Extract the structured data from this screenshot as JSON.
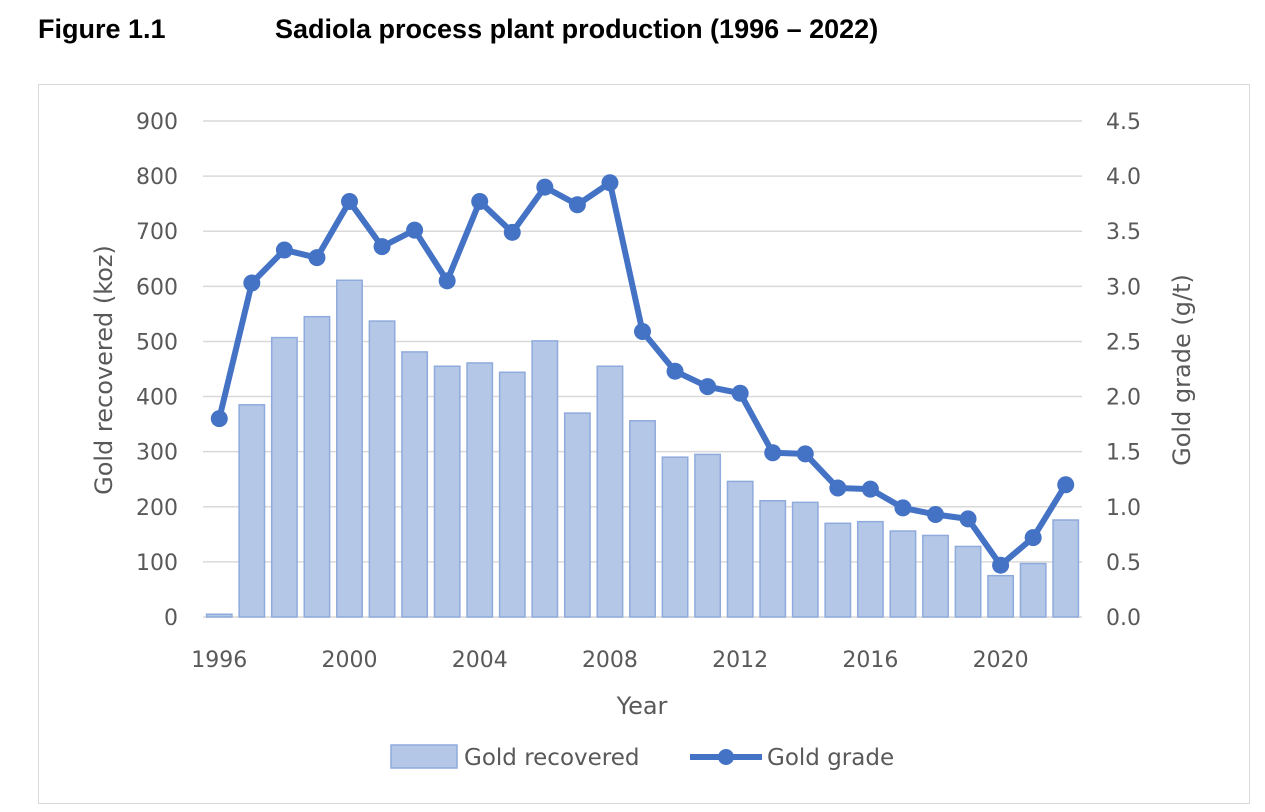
{
  "figure": {
    "label": "Figure 1.1",
    "title": "Sadiola process plant production (1996 – 2022)"
  },
  "colors": {
    "bar_fill": "#b4c7e7",
    "bar_stroke": "#8faadc",
    "line": "#4472c4",
    "grid": "#d9d9d9",
    "text": "#595959"
  },
  "chart_data": {
    "type": "bar",
    "x": [
      1996,
      1997,
      1998,
      1999,
      2000,
      2001,
      2002,
      2003,
      2004,
      2005,
      2006,
      2007,
      2008,
      2009,
      2010,
      2011,
      2012,
      2013,
      2014,
      2015,
      2016,
      2017,
      2018,
      2019,
      2020,
      2021,
      2022
    ],
    "series": [
      {
        "name": "Gold recovered",
        "type": "bar",
        "axis": "left",
        "values": [
          5,
          385,
          507,
          545,
          611,
          537,
          481,
          455,
          461,
          444,
          501,
          370,
          455,
          356,
          290,
          295,
          246,
          211,
          208,
          170,
          173,
          156,
          148,
          128,
          75,
          97,
          176
        ]
      },
      {
        "name": "Gold grade",
        "type": "line",
        "axis": "right",
        "values": [
          1.8,
          3.03,
          3.33,
          3.26,
          3.77,
          3.36,
          3.51,
          3.05,
          3.77,
          3.49,
          3.9,
          3.74,
          3.94,
          2.59,
          2.23,
          2.09,
          2.03,
          1.49,
          1.48,
          1.17,
          1.16,
          0.99,
          0.93,
          0.89,
          0.47,
          0.72,
          1.2
        ]
      }
    ],
    "xlabel": "Year",
    "ylabel": "Gold recovered (koz)",
    "y2label": "Gold grade (g/t)",
    "ylim": [
      0,
      900
    ],
    "y2lim": [
      0,
      4.5
    ],
    "yticks": [
      "0",
      "100",
      "200",
      "300",
      "400",
      "500",
      "600",
      "700",
      "800",
      "900"
    ],
    "y2ticks": [
      "0.0",
      "0.5",
      "1.0",
      "1.5",
      "2.0",
      "2.5",
      "3.0",
      "3.5",
      "4.0",
      "4.5"
    ],
    "xticks": [
      "1996",
      "2000",
      "2004",
      "2008",
      "2012",
      "2016",
      "2020"
    ],
    "grid": true,
    "legend": "bottom"
  }
}
